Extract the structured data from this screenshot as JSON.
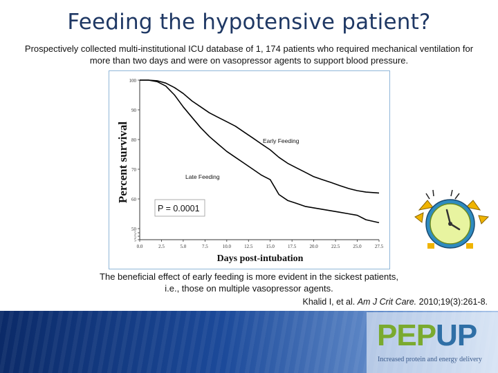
{
  "slide": {
    "title": "Feeding the hypotensive patient?",
    "subtitle": "Prospectively collected multi-institutional ICU database of 1, 174 patients who required mechanical ventilation for more than two days and were on vasopressor agents to support  blood pressure.",
    "caption": "The beneficial effect of early feeding is more evident in the sickest patients, i.e., those on multiple vasopressor agents.",
    "citation_authors": "Khalid I, et al. ",
    "citation_journal": "Am J Crit Care.",
    "citation_details": " 2010;19(3):261-8."
  },
  "logo": {
    "pep": "PEP",
    "up": "UP",
    "tagline": "Increased protein and energy delivery"
  },
  "decoration": {
    "clock_icon": "alarm-clock-icon"
  },
  "colors": {
    "title": "#1f3864",
    "line": "#000000",
    "logo_green": "#7aaa2f",
    "logo_blue": "#2f6fa6"
  },
  "chart_data": {
    "type": "line",
    "title": "",
    "xlabel": "Days post-intubation",
    "ylabel": "Percent survival",
    "xlim": [
      0,
      27.5
    ],
    "ylim": [
      50,
      100
    ],
    "xticks": [
      "0.0",
      "2.5",
      "5.0",
      "7.5",
      "10.0",
      "12.5",
      "15.0",
      "17.5",
      "20.0",
      "22.5",
      "25.0",
      "27.5"
    ],
    "xtick_values": [
      0,
      2.5,
      5,
      7.5,
      10,
      12.5,
      15,
      17.5,
      20,
      22.5,
      25,
      27.5
    ],
    "yticks": [
      "100",
      "90",
      "80",
      "70",
      "60",
      "50"
    ],
    "ytick_values": [
      100,
      90,
      80,
      70,
      60,
      50
    ],
    "annotation": "P = 0.0001",
    "series": [
      {
        "name": "Early Feeding",
        "x": [
          0,
          1,
          2,
          3,
          4,
          5,
          6,
          7,
          8,
          9,
          10,
          11,
          12,
          13,
          14,
          15,
          16,
          17,
          18,
          19,
          20,
          21,
          22,
          23,
          24,
          25,
          26,
          27.5
        ],
        "y": [
          100,
          100,
          99.8,
          99,
          97.5,
          95.5,
          93,
          91,
          89,
          87.5,
          86,
          84.5,
          82.5,
          80.5,
          78.5,
          76.5,
          74,
          72,
          70.5,
          69,
          67.5,
          66.5,
          65.5,
          64.5,
          63.5,
          62.8,
          62.3,
          62
        ]
      },
      {
        "name": "Late Feeding",
        "x": [
          0,
          1,
          2,
          3,
          4,
          5,
          6,
          7,
          8,
          9,
          10,
          11,
          12,
          13,
          14,
          15,
          15.5,
          16,
          17,
          18,
          19,
          20,
          21,
          22,
          23,
          24,
          25,
          26,
          27.5
        ],
        "y": [
          100,
          100,
          99.5,
          98,
          95,
          91,
          87.5,
          84,
          81,
          78.5,
          76,
          74,
          72,
          70,
          68,
          66.5,
          64,
          61.5,
          59.5,
          58.5,
          57.5,
          57,
          56.5,
          56,
          55.5,
          55,
          54.5,
          53,
          52
        ]
      }
    ]
  }
}
